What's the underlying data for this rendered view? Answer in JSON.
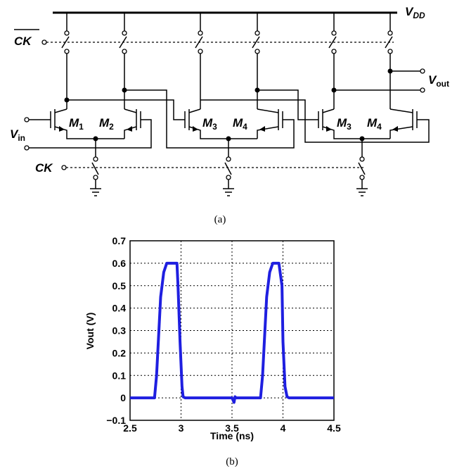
{
  "circuit": {
    "supply_label": "V",
    "supply_sub": "DD",
    "clock_bar_label": "CK",
    "clock_label": "CK",
    "input_label": "V",
    "input_sub": "in",
    "output_label": "V",
    "output_sub": "out",
    "transistors": [
      {
        "name": "M",
        "sub": "1"
      },
      {
        "name": "M",
        "sub": "2"
      },
      {
        "name": "M",
        "sub": "3"
      },
      {
        "name": "M",
        "sub": "4"
      },
      {
        "name": "M",
        "sub": "3"
      },
      {
        "name": "M",
        "sub": "4"
      }
    ],
    "caption": "(a)"
  },
  "chart_data": {
    "type": "line",
    "title": "",
    "xlabel": "Time (ns)",
    "ylabel": "Vout (V)",
    "xlim": [
      2.5,
      4.5
    ],
    "ylim": [
      -0.1,
      0.7
    ],
    "xticks": [
      "2.5",
      "3",
      "3.5",
      "4",
      "4.5"
    ],
    "yticks": [
      "−0.1",
      "0",
      "0.1",
      "0.2",
      "0.3",
      "0.4",
      "0.5",
      "0.6",
      "0.7"
    ],
    "grid": true,
    "series_color": "#1f1fe0",
    "x": [
      2.5,
      2.74,
      2.76,
      2.8,
      2.83,
      2.86,
      2.9,
      2.96,
      2.97,
      2.99,
      3.01,
      3.02,
      3.04,
      3.5,
      3.52,
      3.53,
      3.54,
      3.78,
      3.8,
      3.84,
      3.87,
      3.9,
      3.96,
      3.99,
      4.0,
      4.02,
      4.04,
      4.06,
      4.5
    ],
    "y": [
      0.0,
      0.0,
      0.1,
      0.45,
      0.56,
      0.6,
      0.6,
      0.6,
      0.5,
      0.25,
      0.05,
      0.005,
      0.0,
      0.0,
      -0.02,
      0.005,
      0.0,
      0.0,
      0.1,
      0.45,
      0.56,
      0.6,
      0.6,
      0.5,
      0.25,
      0.05,
      0.005,
      0.0,
      0.0
    ],
    "caption": "(b)"
  }
}
